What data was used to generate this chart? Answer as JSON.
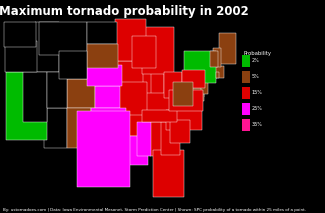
{
  "title": "Maximum tornado probability in 2002",
  "title_color": "white",
  "title_fontsize": 8.5,
  "background_color": "#000000",
  "legend_title": "Probability",
  "legend_entries": [
    "2%",
    "5%",
    "15%",
    "25%",
    "35%"
  ],
  "legend_colors": [
    "#00bb00",
    "#8B4010",
    "#dd0000",
    "#ff00ff",
    "#ff1493"
  ],
  "footnote": "By: ustornadoes.com | Data: Iowa Environmental Mesonet, Storm Prediction Center | Shown: SPC probability of a tornado within 25 miles of a point.",
  "footnote_fontsize": 3.0,
  "state_probabilities": {
    "Alabama": 15,
    "Alaska": 0,
    "Arizona": 0,
    "Arkansas": 15,
    "California": 2,
    "Colorado": 5,
    "Connecticut": 5,
    "Delaware": 5,
    "Florida": 15,
    "Georgia": 15,
    "Hawaii": 0,
    "Idaho": 0,
    "Illinois": 15,
    "Indiana": 15,
    "Iowa": 15,
    "Kansas": 25,
    "Kentucky": 15,
    "Louisiana": 25,
    "Maine": 5,
    "Maryland": 5,
    "Massachusetts": 5,
    "Michigan": 15,
    "Minnesota": 15,
    "Mississippi": 25,
    "Missouri": 15,
    "Montana": 0,
    "Nebraska": 25,
    "Nevada": 0,
    "New Hampshire": 5,
    "New Jersey": 5,
    "New Mexico": 5,
    "New York": 2,
    "North Carolina": 15,
    "North Dakota": 0,
    "Ohio": 15,
    "Oklahoma": 25,
    "Oregon": 0,
    "Pennsylvania": 15,
    "Rhode Island": 5,
    "South Carolina": 15,
    "South Dakota": 5,
    "Tennessee": 15,
    "Texas": 25,
    "Utah": 0,
    "Vermont": 5,
    "Virginia": 15,
    "Washington": 0,
    "West Virginia": 5,
    "Wisconsin": 15,
    "Wyoming": 0
  },
  "prob_colors": {
    "0": "#000000",
    "2": "#00bb00",
    "5": "#8B4010",
    "15": "#dd0000",
    "25": "#ff00ff",
    "35": "#ff1493"
  },
  "xlim": [
    -125,
    -65
  ],
  "ylim": [
    24,
    50
  ],
  "figsize": [
    3.25,
    2.13
  ],
  "dpi": 100
}
